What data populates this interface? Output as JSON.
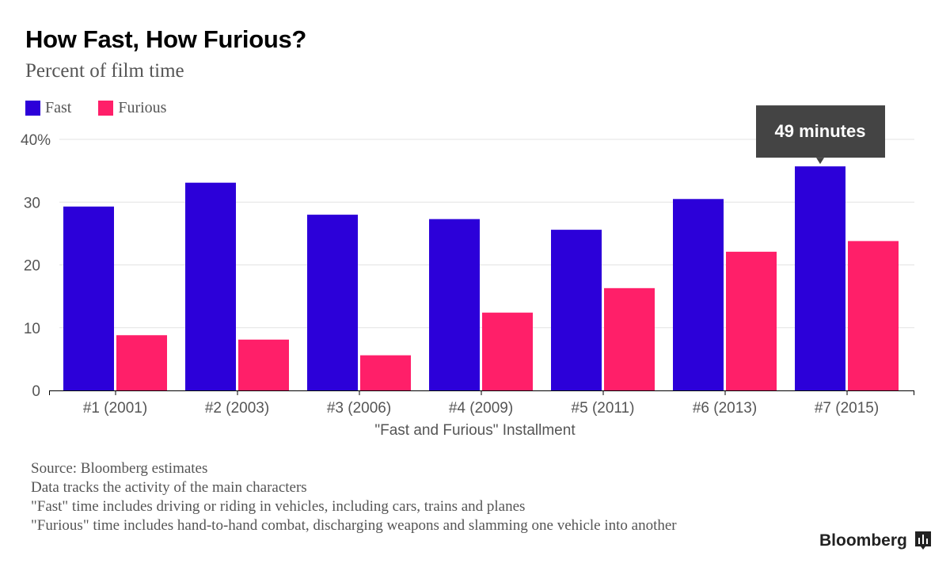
{
  "chart_data": {
    "type": "bar",
    "title": "How Fast, How Furious?",
    "subtitle": "Percent of film time",
    "xlabel": "\"Fast and Furious\" Installment",
    "ylabel": "",
    "ylim": [
      0,
      40
    ],
    "yticks": [
      "0",
      "10",
      "20",
      "30",
      "40%"
    ],
    "grid": true,
    "legend_position": "top-left",
    "categories": [
      "#1 (2001)",
      "#2 (2003)",
      "#3 (2006)",
      "#4 (2009)",
      "#5 (2011)",
      "#6 (2013)",
      "#7 (2015)"
    ],
    "series": [
      {
        "name": "Fast",
        "color": "#2c00d9",
        "values": [
          29.3,
          33.1,
          28.0,
          27.3,
          25.6,
          30.5,
          35.7
        ]
      },
      {
        "name": "Furious",
        "color": "#ff1f69",
        "values": [
          8.8,
          8.1,
          5.6,
          12.4,
          16.3,
          22.1,
          23.8
        ]
      }
    ],
    "annotation": {
      "text": "49 minutes",
      "category": "#7 (2015)",
      "series": "Fast"
    }
  },
  "notes": [
    "Source: Bloomberg estimates",
    "Data tracks the activity of the main characters",
    "\"Fast\" time includes driving or riding in vehicles, including cars, trains and planes",
    "\"Furious\" time includes hand-to-hand combat, discharging weapons and slamming one vehicle into another"
  ],
  "logo": "Bloomberg"
}
